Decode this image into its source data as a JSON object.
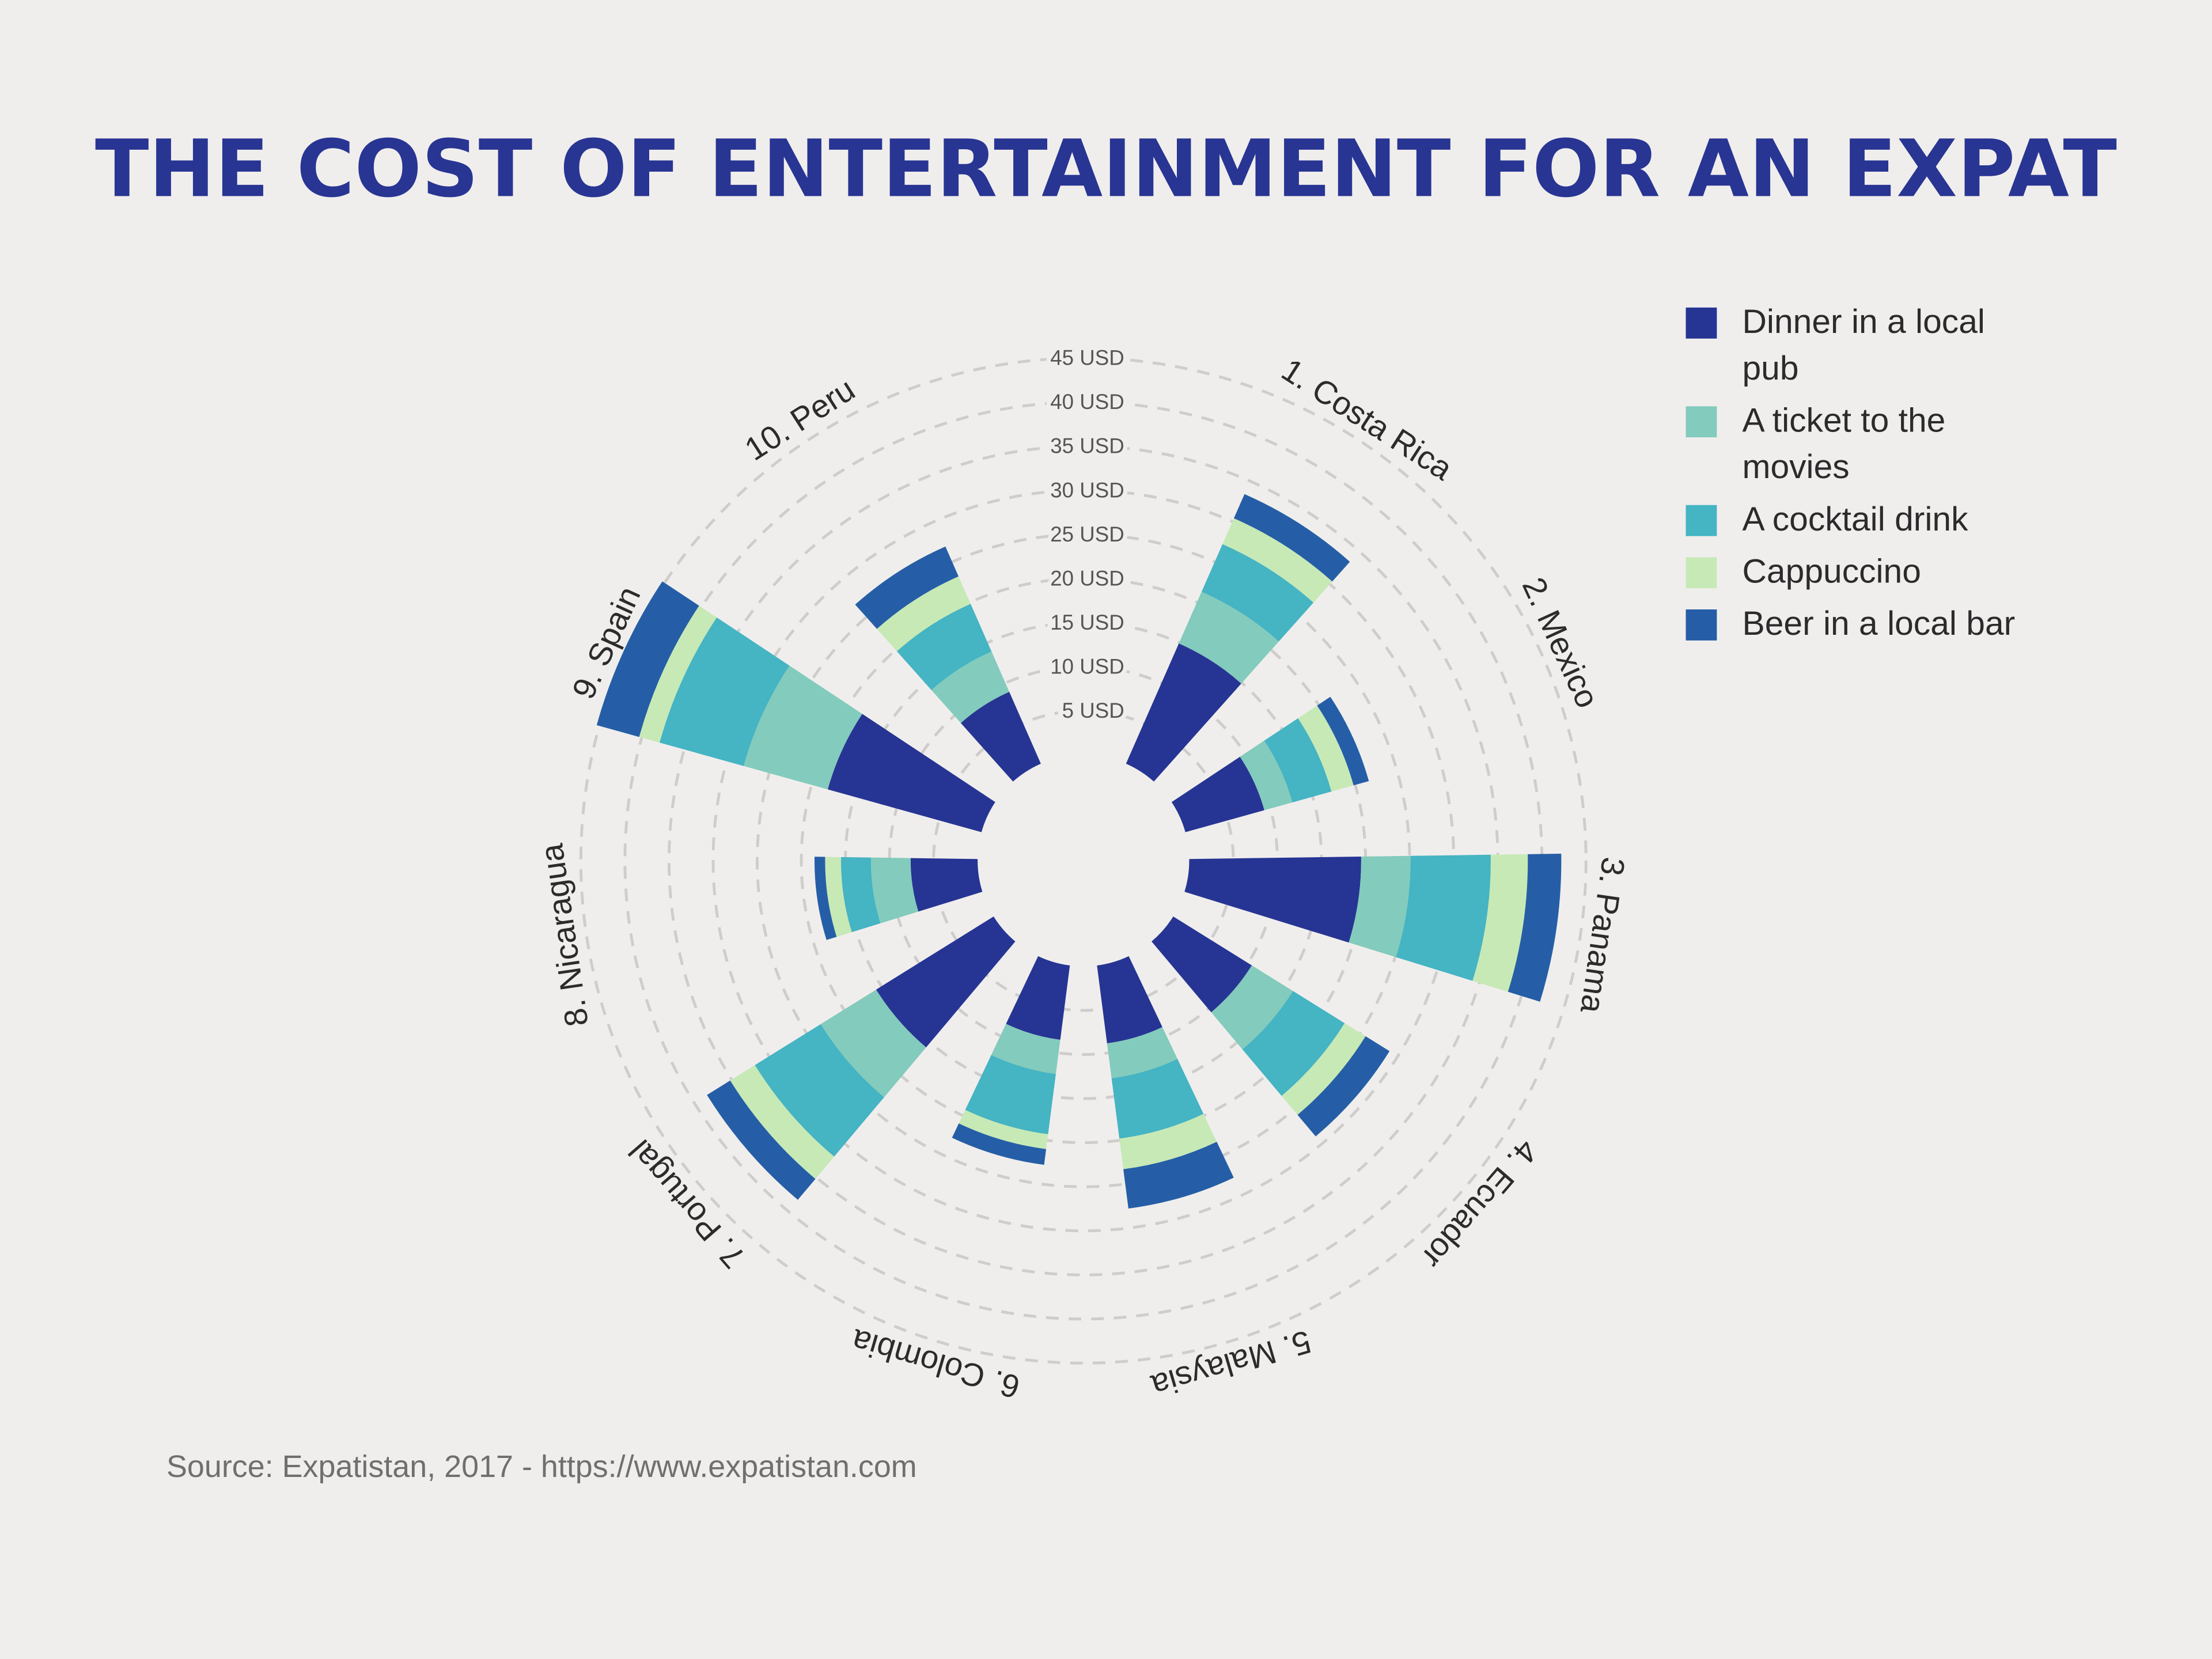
{
  "title": "THE COST OF ENTERTAINMENT FOR AN EXPAT",
  "source": "Source: Expatistan, 2017 - https://www.expatistan.com",
  "legend": [
    {
      "label": "Dinner in a local pub",
      "color": "#263593"
    },
    {
      "label": "A ticket to the movies",
      "color": "#83cbbc"
    },
    {
      "label": "A cocktail drink",
      "color": "#45b4c3"
    },
    {
      "label": "Cappuccino",
      "color": "#c7e9b6"
    },
    {
      "label": "Beer in a local bar",
      "color": "#255ea6"
    }
  ],
  "chart_data": {
    "type": "bar",
    "subtype": "polar-stacked",
    "title": "THE COST OF ENTERTAINMENT FOR AN EXPAT",
    "categories": [
      "1. Costa Rica",
      "2. Mexico",
      "3. Panama",
      "4. Ecuador",
      "5. Malaysia",
      "6. Colombia",
      "7. Portugal",
      "8. Nicaragua",
      "9. Spain",
      "10. Peru"
    ],
    "radial_ticks": [
      "5 USD",
      "10 USD",
      "15 USD",
      "20 USD",
      "25 USD",
      "30 USD",
      "35 USD",
      "40 USD",
      "45 USD"
    ],
    "radial_tick_values": [
      5,
      10,
      15,
      20,
      25,
      30,
      35,
      40,
      45
    ],
    "rlim": [
      0,
      45
    ],
    "unit": "USD",
    "grid": true,
    "legend_position": "top-right",
    "series": [
      {
        "name": "Dinner in a local pub",
        "color": "#263593",
        "values": [
          14.9,
          9.3,
          19.5,
          10.5,
          8.9,
          8.5,
          15.7,
          7.6,
          18.1,
          8.9
        ]
      },
      {
        "name": "A ticket to the movies",
        "color": "#83cbbc",
        "values": [
          6.4,
          3.3,
          5.6,
          5.5,
          4.0,
          3.9,
          7.4,
          4.5,
          9.9,
          5.0
        ]
      },
      {
        "name": "A cocktail drink",
        "color": "#45b4c3",
        "values": [
          5.9,
          4.6,
          9.1,
          6.9,
          6.9,
          6.9,
          8.8,
          3.4,
          9.9,
          5.9
        ]
      },
      {
        "name": "Cappuccino",
        "color": "#c7e9b6",
        "values": [
          3.2,
          2.6,
          4.2,
          2.8,
          3.5,
          1.7,
          3.3,
          1.8,
          2.4,
          3.4
        ]
      },
      {
        "name": "Beer in a local bar",
        "color": "#255ea6",
        "values": [
          3.0,
          1.8,
          3.8,
          3.2,
          4.5,
          1.8,
          3.1,
          1.2,
          5.0,
          3.7
        ]
      }
    ]
  }
}
